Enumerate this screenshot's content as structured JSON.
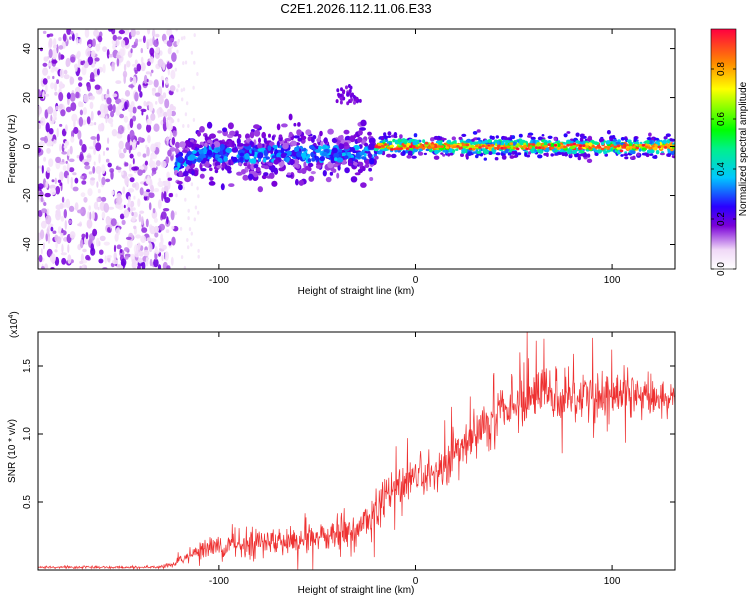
{
  "figure_title": "C2E1.2026.112.11.06.E33",
  "chart_data": [
    {
      "type": "heatmap",
      "title": "C2E1.2026.112.11.06.E33",
      "xlabel": "Height of straight line (km)",
      "ylabel": "Frequency (Hz)",
      "xlim": [
        -192,
        132
      ],
      "ylim": [
        -50,
        48
      ],
      "x_ticks": [
        -100,
        0,
        100
      ],
      "y_ticks": [
        -40,
        -20,
        0,
        20,
        40
      ],
      "colorbar": {
        "label": "Normalized spectral amplitude",
        "range": [
          0,
          0.96
        ],
        "ticks": [
          0.0,
          0.2,
          0.4,
          0.6,
          0.8
        ]
      },
      "features": [
        {
          "region": "noise",
          "x_range": [
            -192,
            -122
          ],
          "y_range": [
            -50,
            48
          ],
          "amplitude": 0.1
        },
        {
          "region": "signal_band_onset",
          "x_range": [
            -122,
            -20
          ],
          "center_freq": -3,
          "width_hz": 12,
          "amplitude": 0.3
        },
        {
          "region": "signal_band",
          "x_range": [
            -20,
            132
          ],
          "center_freq": 0,
          "width_hz": 6,
          "amplitude": 0.85
        },
        {
          "region": "blob",
          "x_range": [
            -40,
            -28
          ],
          "center_freq": 20,
          "amplitude": 0.15
        }
      ]
    },
    {
      "type": "line",
      "xlabel": "Height of straight line (km)",
      "ylabel": "SNR (10 * v/v)",
      "scale_note": "(x10",
      "scale_exponent": "4",
      "xlim": [
        -192,
        132
      ],
      "ylim": [
        0,
        1.75
      ],
      "x_ticks": [
        -100,
        0,
        100
      ],
      "y_ticks": [
        0.5,
        1.0,
        1.5
      ],
      "color": "#ee3030",
      "series": [
        {
          "name": "SNR",
          "x": [
            -192,
            -160,
            -130,
            -122,
            -110,
            -95,
            -80,
            -60,
            -45,
            -30,
            -20,
            -10,
            0,
            10,
            20,
            30,
            40,
            50,
            60,
            70,
            80,
            90,
            100,
            110,
            120,
            132
          ],
          "mean": [
            0.02,
            0.02,
            0.02,
            0.05,
            0.15,
            0.18,
            0.2,
            0.22,
            0.25,
            0.28,
            0.45,
            0.6,
            0.65,
            0.7,
            0.85,
            1.0,
            1.1,
            1.22,
            1.28,
            1.3,
            1.3,
            1.3,
            1.3,
            1.28,
            1.28,
            1.27
          ],
          "spread": [
            0.01,
            0.01,
            0.01,
            0.03,
            0.08,
            0.1,
            0.12,
            0.14,
            0.14,
            0.14,
            0.18,
            0.18,
            0.16,
            0.16,
            0.18,
            0.2,
            0.2,
            0.22,
            0.24,
            0.25,
            0.25,
            0.24,
            0.22,
            0.18,
            0.15,
            0.12
          ]
        }
      ]
    }
  ]
}
